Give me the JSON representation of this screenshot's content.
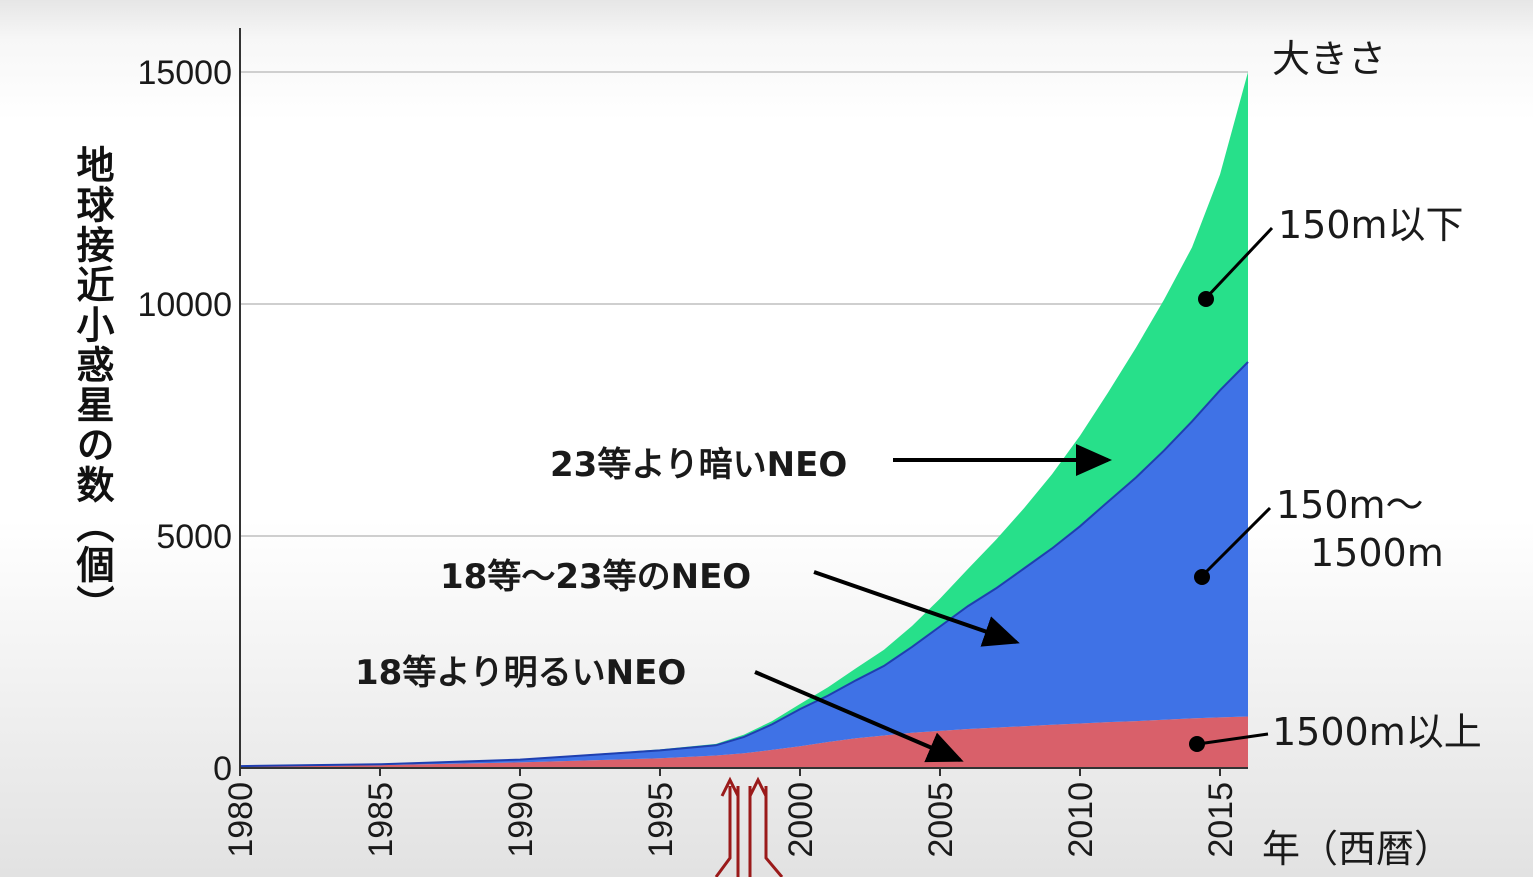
{
  "chart_data": {
    "type": "area",
    "stacked": true,
    "ylabel": "地球接近小惑星の数（個）",
    "xlabel": "年（西暦）",
    "legend_title": "大きさ",
    "xlim": [
      1980,
      2016
    ],
    "ylim": [
      0,
      15000
    ],
    "grid": true,
    "x_ticks": [
      "1980",
      "1985",
      "1990",
      "1995",
      "2000",
      "2005",
      "2010",
      "2015"
    ],
    "y_ticks": [
      "0",
      "5000",
      "10000",
      "15000"
    ],
    "x": [
      1980,
      1985,
      1990,
      1995,
      1997,
      1998,
      1999,
      2000,
      2001,
      2002,
      2003,
      2004,
      2005,
      2006,
      2007,
      2008,
      2009,
      2010,
      2011,
      2012,
      2013,
      2014,
      2015,
      2016
    ],
    "series": [
      {
        "name": "18等より明るいNEO",
        "color": "#d9606a",
        "values": [
          30,
          60,
          120,
          210,
          270,
          320,
          390,
          470,
          560,
          640,
          700,
          760,
          800,
          840,
          870,
          900,
          930,
          960,
          990,
          1010,
          1040,
          1070,
          1090,
          1110
        ]
      },
      {
        "name": "18等～23等のNEO",
        "color": "#3f72e6",
        "values": [
          10,
          20,
          60,
          170,
          220,
          350,
          550,
          800,
          1000,
          1250,
          1500,
          1850,
          2250,
          2650,
          3000,
          3400,
          3800,
          4250,
          4750,
          5250,
          5800,
          6400,
          7050,
          7640
        ]
      },
      {
        "name": "23等より暗いNEO",
        "color": "#27e08a",
        "values": [
          0,
          0,
          10,
          20,
          30,
          50,
          70,
          110,
          180,
          260,
          350,
          450,
          600,
          800,
          1050,
          1300,
          1600,
          1950,
          2350,
          2800,
          3250,
          3750,
          4650,
          6250
        ]
      }
    ],
    "annotations": [
      {
        "text": "23等より暗いNEO"
      },
      {
        "text": "18等～23等のNEO"
      },
      {
        "text": "18等より明るいNEO"
      }
    ],
    "size_labels": [
      {
        "text": "150m以下"
      },
      {
        "text": "150m～"
      },
      {
        "text": "1500m"
      },
      {
        "text": "1500m以上"
      }
    ]
  },
  "colors": {
    "grid": "#cfcfcf",
    "axis": "#333333",
    "arrow": "#000000",
    "marker_arrow": "#9a1a1a"
  }
}
